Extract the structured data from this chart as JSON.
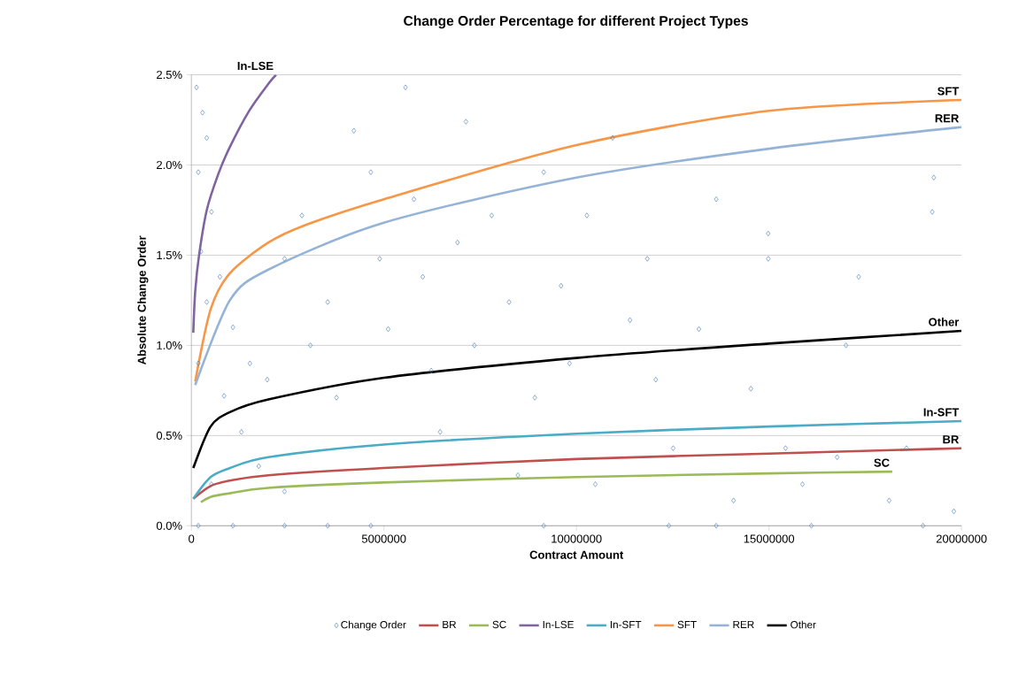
{
  "chart_data": {
    "type": "scatter",
    "title": "Change Order Percentage for different Project Types",
    "xlabel": "Contract Amount",
    "ylabel": "Absolute Change Order",
    "xlim": [
      0,
      20000000
    ],
    "xticks": [
      0,
      5000000,
      10000000,
      15000000,
      20000000
    ],
    "ylim": [
      0,
      2.5
    ],
    "yticks": [
      {
        "value": 0,
        "label": "0.0%"
      },
      {
        "value": 0.5,
        "label": "0.5%"
      },
      {
        "value": 1.0,
        "label": "1.0%"
      },
      {
        "value": 1.5,
        "label": "1.5%"
      },
      {
        "value": 2.0,
        "label": "2.0%"
      },
      {
        "value": 2.5,
        "label": "2.5%"
      }
    ],
    "grid": "y",
    "legend": "bottom",
    "series": [
      {
        "name": "Change Order",
        "marker": "diamond",
        "color": "#4f81bd",
        "x": [
          134000,
          290000,
          400000,
          180000,
          520000,
          250000,
          740000,
          400000,
          1080000,
          180000,
          850000,
          1300000,
          1750000,
          2420000,
          520000,
          1520000,
          1970000,
          2420000,
          2870000,
          3090000,
          3540000,
          3770000,
          4220000,
          4660000,
          4890000,
          5110000,
          5560000,
          5780000,
          6010000,
          6230000,
          6460000,
          6910000,
          7130000,
          7350000,
          7800000,
          8250000,
          8480000,
          8920000,
          9150000,
          9600000,
          9820000,
          10270000,
          10490000,
          10940000,
          11390000,
          11840000,
          12060000,
          12510000,
          13180000,
          13630000,
          14080000,
          14530000,
          14980000,
          15430000,
          15870000,
          16770000,
          17000000,
          17330000,
          18120000,
          18570000,
          19280000,
          19240000,
          19800000,
          14980000,
          180000,
          1080000,
          2420000,
          3540000,
          4660000,
          9150000,
          12400000,
          13630000,
          16100000,
          19000000
        ],
        "values": [
          2.43,
          2.29,
          2.15,
          1.96,
          1.74,
          1.52,
          1.38,
          1.24,
          1.1,
          0.9,
          0.72,
          0.52,
          0.33,
          0.19,
          0.23,
          0.9,
          0.81,
          1.48,
          1.72,
          1.0,
          1.24,
          0.71,
          2.19,
          1.96,
          1.48,
          1.09,
          2.43,
          1.81,
          1.38,
          0.86,
          0.52,
          1.57,
          2.24,
          1.0,
          1.72,
          1.24,
          0.28,
          0.71,
          1.96,
          1.33,
          0.9,
          1.72,
          0.23,
          2.15,
          1.14,
          1.48,
          0.81,
          0.43,
          1.09,
          1.81,
          0.14,
          0.76,
          1.48,
          0.43,
          0.23,
          0.38,
          1.0,
          1.38,
          0.14,
          0.43,
          1.93,
          1.74,
          0.08,
          1.62,
          0,
          0,
          0,
          0,
          0,
          0,
          0,
          0,
          0,
          0
        ]
      },
      {
        "name": "BR",
        "type": "line",
        "color": "#c0504d",
        "x": [
          50000,
          500000,
          1000000,
          2000000,
          5000000,
          10000000,
          15000000,
          20000000
        ],
        "values": [
          0.15,
          0.22,
          0.25,
          0.28,
          0.32,
          0.37,
          0.4,
          0.43
        ]
      },
      {
        "name": "SC",
        "type": "line",
        "color": "#9bbb59",
        "x": [
          250000,
          500000,
          1000000,
          2000000,
          5000000,
          10000000,
          15000000,
          18200000
        ],
        "values": [
          0.13,
          0.16,
          0.18,
          0.21,
          0.24,
          0.27,
          0.29,
          0.3
        ]
      },
      {
        "name": "In-LSE",
        "type": "line",
        "color": "#8064a2",
        "x": [
          50000,
          100000,
          200000,
          400000,
          700000,
          1000000,
          1500000,
          2000000,
          2200000
        ],
        "values": [
          1.07,
          1.3,
          1.5,
          1.75,
          1.95,
          2.1,
          2.3,
          2.45,
          2.5
        ]
      },
      {
        "name": "In-SFT",
        "type": "line",
        "color": "#4bacc6",
        "x": [
          50000,
          500000,
          1000000,
          2000000,
          5000000,
          10000000,
          15000000,
          20000000
        ],
        "values": [
          0.15,
          0.27,
          0.32,
          0.38,
          0.45,
          0.51,
          0.55,
          0.58
        ]
      },
      {
        "name": "SFT",
        "type": "line",
        "color": "#f79646",
        "x": [
          100000,
          500000,
          1000000,
          2000000,
          3000000,
          5000000,
          10000000,
          15000000,
          20000000
        ],
        "values": [
          0.8,
          1.2,
          1.4,
          1.57,
          1.67,
          1.81,
          2.11,
          2.3,
          2.36
        ]
      },
      {
        "name": "RER",
        "type": "line",
        "color": "#95b3d7",
        "x": [
          100000,
          1000000,
          2000000,
          5000000,
          10000000,
          15000000,
          20000000
        ],
        "values": [
          0.78,
          1.25,
          1.42,
          1.68,
          1.93,
          2.09,
          2.21
        ]
      },
      {
        "name": "Other",
        "type": "line",
        "color": "#000000",
        "x": [
          50000,
          500000,
          1000000,
          2000000,
          5000000,
          10000000,
          15000000,
          20000000
        ],
        "values": [
          0.32,
          0.55,
          0.63,
          0.7,
          0.82,
          0.93,
          1.01,
          1.08
        ]
      }
    ]
  }
}
